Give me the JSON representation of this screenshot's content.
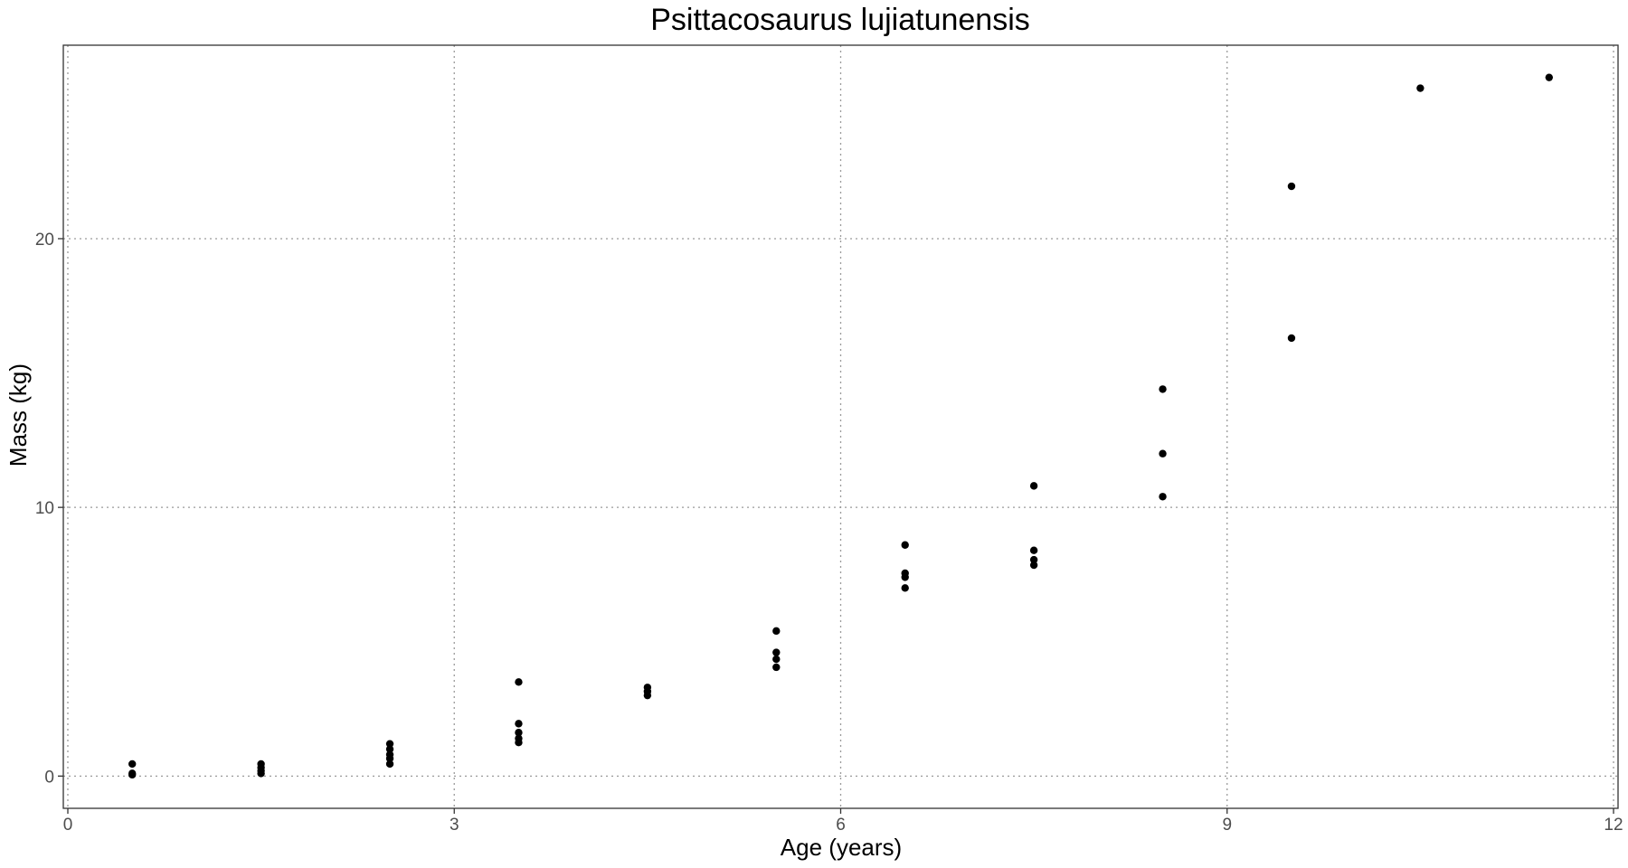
{
  "chart_data": {
    "type": "scatter",
    "title": "Psittacosaurus lujiatunensis",
    "xlabel": "Age (years)",
    "ylabel": "Mass (kg)",
    "xlim": [
      0,
      12
    ],
    "ylim": [
      -1.2,
      27.2
    ],
    "xticks": [
      0,
      3,
      6,
      9,
      12
    ],
    "yticks": [
      0,
      10,
      20
    ],
    "grid": true,
    "legend": "none",
    "point_color": "#000000",
    "points": [
      {
        "x": 0.5,
        "y": 0.45
      },
      {
        "x": 0.5,
        "y": 0.1
      },
      {
        "x": 0.5,
        "y": 0.05
      },
      {
        "x": 1.5,
        "y": 0.45
      },
      {
        "x": 1.5,
        "y": 0.32
      },
      {
        "x": 1.5,
        "y": 0.2
      },
      {
        "x": 1.5,
        "y": 0.1
      },
      {
        "x": 2.5,
        "y": 1.2
      },
      {
        "x": 2.5,
        "y": 1.0
      },
      {
        "x": 2.5,
        "y": 0.8
      },
      {
        "x": 2.5,
        "y": 0.65
      },
      {
        "x": 2.5,
        "y": 0.45
      },
      {
        "x": 3.5,
        "y": 3.5
      },
      {
        "x": 3.5,
        "y": 1.95
      },
      {
        "x": 3.5,
        "y": 1.62
      },
      {
        "x": 3.5,
        "y": 1.4
      },
      {
        "x": 3.5,
        "y": 1.25
      },
      {
        "x": 4.5,
        "y": 3.3
      },
      {
        "x": 4.5,
        "y": 3.15
      },
      {
        "x": 4.5,
        "y": 3.0
      },
      {
        "x": 5.5,
        "y": 5.4
      },
      {
        "x": 5.5,
        "y": 4.6
      },
      {
        "x": 5.5,
        "y": 4.35
      },
      {
        "x": 5.5,
        "y": 4.05
      },
      {
        "x": 6.5,
        "y": 8.6
      },
      {
        "x": 6.5,
        "y": 7.55
      },
      {
        "x": 6.5,
        "y": 7.4
      },
      {
        "x": 6.5,
        "y": 7.0
      },
      {
        "x": 7.5,
        "y": 10.8
      },
      {
        "x": 7.5,
        "y": 8.4
      },
      {
        "x": 7.5,
        "y": 8.05
      },
      {
        "x": 7.5,
        "y": 7.85
      },
      {
        "x": 8.5,
        "y": 14.4
      },
      {
        "x": 8.5,
        "y": 12.0
      },
      {
        "x": 8.5,
        "y": 10.4
      },
      {
        "x": 9.5,
        "y": 21.95
      },
      {
        "x": 9.5,
        "y": 16.3
      },
      {
        "x": 10.5,
        "y": 25.6
      },
      {
        "x": 11.5,
        "y": 26.0
      }
    ]
  }
}
